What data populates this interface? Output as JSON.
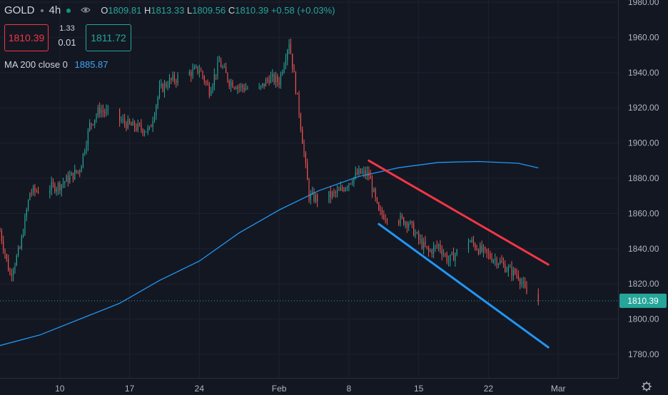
{
  "header": {
    "symbol": "GOLD",
    "interval": "4h",
    "o_label": "O",
    "o": "1809.81",
    "h_label": "H",
    "h": "1813.33",
    "l_label": "L",
    "l": "1809.56",
    "c_label": "C",
    "c": "1810.39",
    "change": "+0.58 (+0.03%)"
  },
  "trade": {
    "sell_price": "1810.39",
    "spread_top": "1.33",
    "spread_bottom": "0.01",
    "buy_price": "1811.72"
  },
  "indicator": {
    "label": "MA 200 close 0",
    "value": "1885.87"
  },
  "colors": {
    "up": "#26a69a",
    "down": "#ef5350",
    "ma": "#2196f3",
    "resistance": "#f23645",
    "support": "#2196f3",
    "background": "#131722"
  },
  "chart_data": {
    "type": "candlestick",
    "title": "",
    "ylim": [
      1770,
      1980
    ],
    "y_ticks": [
      1780,
      1800,
      1820,
      1840,
      1860,
      1880,
      1900,
      1920,
      1940,
      1960,
      1980
    ],
    "y_tick_labels": [
      "1780.00",
      "1800.00",
      "1820.00",
      "1840.00",
      "1860.00",
      "1880.00",
      "1900.00",
      "1920.00",
      "1940.00",
      "1960.00",
      "1980.00"
    ],
    "x_ticks": [
      "10",
      "17",
      "24",
      "Feb",
      "8",
      "15",
      "22",
      "Mar"
    ],
    "x_tick_dates": [
      "2022-01-10",
      "2022-01-17",
      "2022-01-24",
      "2022-02-01",
      "2022-02-08",
      "2022-02-15",
      "2022-02-22",
      "2022-03-01"
    ],
    "x_range": [
      "2022-01-04",
      "2022-03-07"
    ],
    "last_price": 1810.39,
    "last_price_label": "1810.39",
    "price_path": [
      [
        "2022-01-04",
        1850
      ],
      [
        "2022-01-05",
        1825
      ],
      [
        "2022-01-06",
        1840
      ],
      [
        "2022-01-07",
        1872
      ],
      [
        "2022-01-10",
        1876
      ],
      [
        "2022-01-12",
        1885
      ],
      [
        "2022-01-13",
        1910
      ],
      [
        "2022-01-14",
        1919
      ],
      [
        "2022-01-17",
        1910
      ],
      [
        "2022-01-19",
        1907
      ],
      [
        "2022-01-20",
        1930
      ],
      [
        "2022-01-21",
        1935
      ],
      [
        "2022-01-24",
        1942
      ],
      [
        "2022-01-25",
        1930
      ],
      [
        "2022-01-26",
        1946
      ],
      [
        "2022-01-27",
        1935
      ],
      [
        "2022-01-28",
        1932
      ],
      [
        "2022-01-30",
        1930
      ],
      [
        "2022-01-31",
        1937
      ],
      [
        "2022-02-01",
        1935
      ],
      [
        "2022-02-02",
        1958
      ],
      [
        "2022-02-03",
        1918
      ],
      [
        "2022-02-04",
        1870
      ],
      [
        "2022-02-05",
        1868
      ],
      [
        "2022-02-07",
        1872
      ],
      [
        "2022-02-08",
        1878
      ],
      [
        "2022-02-09",
        1883
      ],
      [
        "2022-02-10",
        1882
      ],
      [
        "2022-02-11",
        1860
      ],
      [
        "2022-02-14",
        1855
      ],
      [
        "2022-02-15",
        1845
      ],
      [
        "2022-02-16",
        1838
      ],
      [
        "2022-02-17",
        1842
      ],
      [
        "2022-02-18",
        1833
      ],
      [
        "2022-02-20",
        1845
      ],
      [
        "2022-02-21",
        1840
      ],
      [
        "2022-02-22",
        1836
      ],
      [
        "2022-02-23",
        1833
      ],
      [
        "2022-02-24",
        1828
      ],
      [
        "2022-02-25",
        1825
      ],
      [
        "2022-02-26",
        1812
      ],
      [
        "2022-02-27",
        1810.39
      ]
    ],
    "ma200": [
      [
        "2022-01-04",
        1785
      ],
      [
        "2022-01-08",
        1791
      ],
      [
        "2022-01-12",
        1800
      ],
      [
        "2022-01-16",
        1809
      ],
      [
        "2022-01-20",
        1822
      ],
      [
        "2022-01-24",
        1833
      ],
      [
        "2022-01-28",
        1849
      ],
      [
        "2022-02-01",
        1862
      ],
      [
        "2022-02-05",
        1873
      ],
      [
        "2022-02-09",
        1881
      ],
      [
        "2022-02-13",
        1886
      ],
      [
        "2022-02-17",
        1889
      ],
      [
        "2022-02-21",
        1889.5
      ],
      [
        "2022-02-25",
        1888.5
      ],
      [
        "2022-02-27",
        1885.87
      ]
    ],
    "trendlines": [
      {
        "role": "resistance",
        "from": [
          "2022-02-10",
          1890
        ],
        "to": [
          "2022-02-28",
          1831
        ]
      },
      {
        "role": "support",
        "from": [
          "2022-02-11",
          1854
        ],
        "to": [
          "2022-02-28",
          1784
        ]
      }
    ]
  }
}
